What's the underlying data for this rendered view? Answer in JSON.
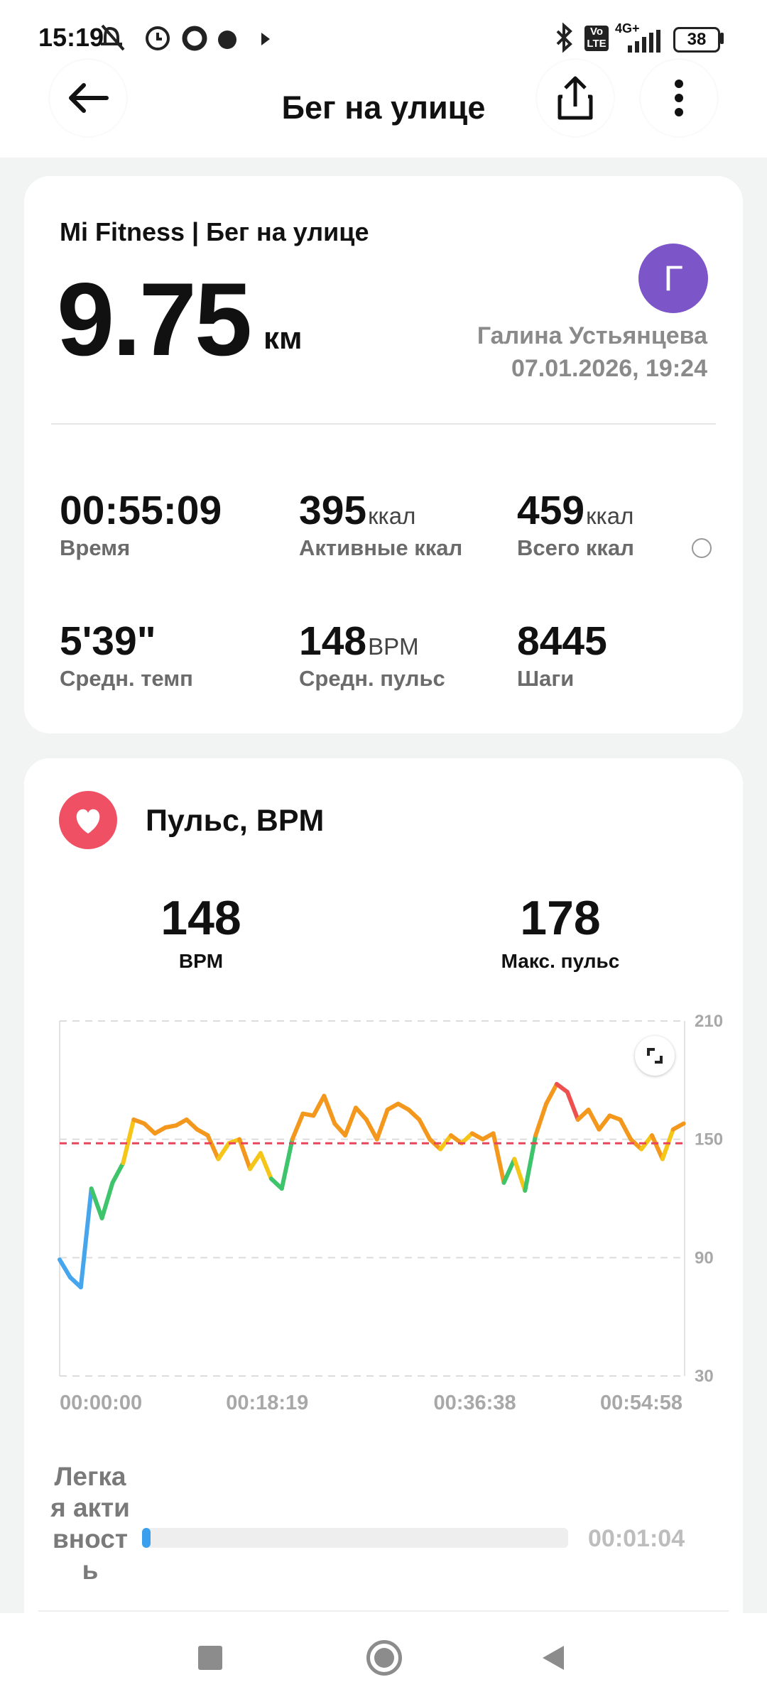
{
  "status_bar": {
    "time": "15:19",
    "volte_top": "Vo",
    "volte_bottom": "LTE",
    "network": "4G+",
    "battery": "38"
  },
  "header": {
    "title": "Бег на улице"
  },
  "summary": {
    "source": "Mi Fitness | Бег на улице",
    "distance": "9.75",
    "distance_unit": "км",
    "avatar": "Г",
    "user": "Галина Устьянцева",
    "datetime": "07.01.2026, 19:24",
    "stats": [
      {
        "value": "00:55:09",
        "label": "Время"
      },
      {
        "value": "395",
        "unit": "ккал",
        "label": "Активные ккал"
      },
      {
        "value": "459",
        "unit": "ккал",
        "label": "Всего ккал"
      },
      {
        "value": "5'39\"",
        "label": "Средн. темп"
      },
      {
        "value": "148",
        "unit": "BPM",
        "label": "Средн. пульс"
      },
      {
        "value": "8445",
        "label": "Шаги"
      }
    ]
  },
  "heart": {
    "title": "Пульс, BPM",
    "avg": "148",
    "avg_label": "BPM",
    "max": "178",
    "max_label": "Макс. пульс",
    "zone": {
      "label": "Легкая активность",
      "time": "00:01:04"
    }
  },
  "chart_data": {
    "type": "line",
    "x": [
      0,
      56,
      112,
      168,
      224,
      280,
      336,
      392,
      448,
      504,
      560,
      616,
      672,
      728,
      784,
      840,
      896,
      952,
      1008,
      1064,
      1120,
      1176,
      1232,
      1288,
      1344,
      1400,
      1456,
      1512,
      1568,
      1624,
      1680,
      1736,
      1792,
      1848,
      1904,
      1960,
      2016,
      2072,
      2128,
      2184,
      2240,
      2296,
      2352,
      2408,
      2464,
      2520,
      2576,
      2632,
      2688,
      2744,
      2800,
      2856,
      2912,
      2968,
      3024,
      3080,
      3136,
      3192,
      3248,
      3304
    ],
    "series": [
      {
        "values": [
          89,
          80,
          75,
          125,
          110,
          128,
          138,
          160,
          158,
          153,
          156,
          157,
          160,
          155,
          152,
          140,
          148,
          150,
          135,
          143,
          130,
          125,
          150,
          163,
          162,
          172,
          158,
          152,
          166,
          160,
          150,
          165,
          168,
          165,
          160,
          150,
          145,
          152,
          148,
          153,
          150,
          153,
          128,
          140,
          124,
          152,
          168,
          178,
          174,
          160,
          165,
          155,
          162,
          160,
          150,
          145,
          152,
          140,
          155,
          158
        ],
        "point_colors": [
          "#45a6ee",
          "#45a6ee",
          "#45a6ee",
          "#3ec46a",
          "#3ec46a",
          "#3ec46a",
          "#f5c518",
          "#f3981c",
          "#f3981c",
          "#f3981c",
          "#f3981c",
          "#f3981c",
          "#f3981c",
          "#f3981c",
          "#f3981c",
          "#f5c518",
          "#f5c518",
          "#f3981c",
          "#f5c518",
          "#f5c518",
          "#3ec46a",
          "#3ec46a",
          "#f3981c",
          "#f3981c",
          "#f3981c",
          "#f3981c",
          "#f3981c",
          "#f3981c",
          "#f3981c",
          "#f3981c",
          "#f3981c",
          "#f3981c",
          "#f3981c",
          "#f3981c",
          "#f3981c",
          "#f3981c",
          "#f5c518",
          "#f3981c",
          "#f5c518",
          "#f3981c",
          "#f3981c",
          "#f3981c",
          "#3ec46a",
          "#f5c518",
          "#3ec46a",
          "#f3981c",
          "#f3981c",
          "#ee5050",
          "#ee5050",
          "#f3981c",
          "#f3981c",
          "#f3981c",
          "#f3981c",
          "#f3981c",
          "#f3981c",
          "#f5c518",
          "#f3981c",
          "#f5c518",
          "#f3981c",
          "#f3981c"
        ]
      }
    ],
    "average": 148,
    "average_color": "#e8455a",
    "xlim": [
      0,
      3309
    ],
    "xticks": [
      {
        "value": 0,
        "label": "00:00:00"
      },
      {
        "value": 1099,
        "label": "00:18:19"
      },
      {
        "value": 2198,
        "label": "00:36:38"
      },
      {
        "value": 3298,
        "label": "00:54:58"
      }
    ],
    "ylim": [
      30,
      210
    ],
    "yticks": [
      30,
      90,
      150,
      210
    ],
    "grid": true
  }
}
